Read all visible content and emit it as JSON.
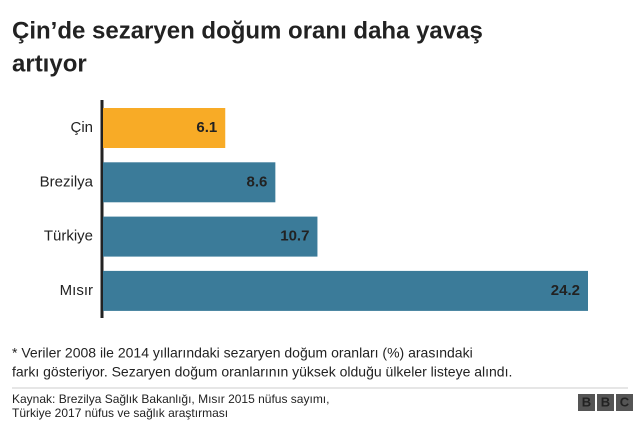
{
  "chart_data": {
    "type": "hbar",
    "title": [
      "Çin’de sezaryen doğum oranı daha yavaş",
      "artıyor"
    ],
    "categories": [
      "Çin",
      "Brezilya",
      "Türkiye",
      "Mısır"
    ],
    "values": [
      6.1,
      8.6,
      10.7,
      24.2
    ],
    "colors": [
      "#f8ab26",
      "#3b7b99",
      "#3b7b99",
      "#3b7b99"
    ],
    "note": [
      "* Veriler 2008 ile 2014 yıllarındaki sezaryen doğum oranları (%) arasındaki",
      "farkı gösteriyor. Sezaryen doğum oranlarının yüksek olduğu ülkeler listeye alındı."
    ],
    "source": [
      "Kaynak: Brezilya Sağlık Bakanlığı, Mısır 2015 nüfus sayımı,",
      "Türkiye 2017 nüfus ve sağlık araştırması"
    ],
    "logo": [
      "B",
      "B",
      "C"
    ]
  }
}
